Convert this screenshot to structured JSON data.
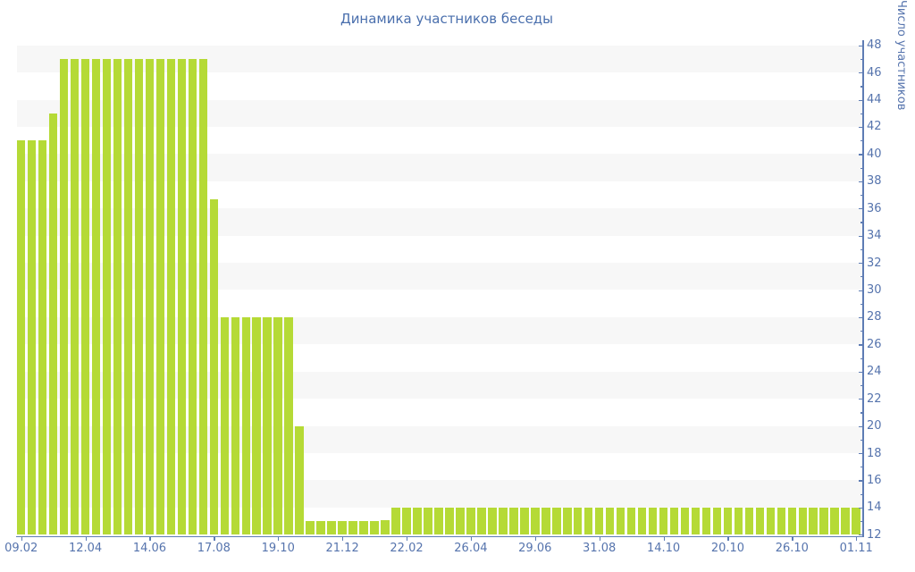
{
  "chart_data": {
    "type": "bar",
    "title": "Динамика участников беседы",
    "ylabel": "Число участников",
    "xlabel": "",
    "ylim": [
      12,
      48
    ],
    "ytick_step": 2,
    "grid": "alternating horizontal gray bands, 2 units tall",
    "legend": false,
    "bar_color": "#b5da36",
    "band_color": "#f7f7f7",
    "axis_color": "#5e7cb4",
    "label_color": "#5674ad",
    "title_color": "#4a6fad",
    "x_tick_labels": [
      "09.02",
      "12.04",
      "14.06",
      "17.08",
      "19.10",
      "21.12",
      "22.02",
      "26.04",
      "29.06",
      "31.08",
      "14.10",
      "20.10",
      "26.10",
      "01.11"
    ],
    "x_tick_every_n_bars": 6,
    "values": [
      41,
      41,
      41,
      43,
      47,
      47,
      47,
      47,
      47,
      47,
      47,
      47,
      47,
      47,
      47,
      47,
      47,
      47,
      36.7,
      28,
      28,
      28,
      28,
      28,
      28,
      28,
      20,
      13,
      13,
      13,
      13,
      13,
      13,
      13,
      13.1,
      14,
      14,
      14,
      14,
      14,
      14,
      14,
      14,
      14,
      14,
      14,
      14,
      14,
      14,
      14,
      14,
      14,
      14,
      14,
      14,
      14,
      14,
      14,
      14,
      14,
      14,
      14,
      14,
      14,
      14,
      14,
      14,
      14,
      14,
      14,
      14,
      14,
      14,
      14,
      14,
      14,
      14,
      14,
      14
    ]
  }
}
